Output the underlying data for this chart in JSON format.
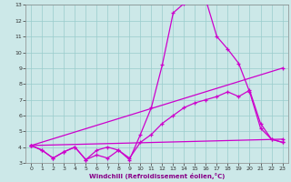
{
  "title": "",
  "xlabel": "Windchill (Refroidissement éolien,°C)",
  "bg_color": "#cce8e8",
  "line_color": "#cc00cc",
  "grid_color": "#99cccc",
  "xlim": [
    -0.5,
    23.5
  ],
  "ylim": [
    3,
    13
  ],
  "xticks": [
    0,
    1,
    2,
    3,
    4,
    5,
    6,
    7,
    8,
    9,
    10,
    11,
    12,
    13,
    14,
    15,
    16,
    17,
    18,
    19,
    20,
    21,
    22,
    23
  ],
  "yticks": [
    3,
    4,
    5,
    6,
    7,
    8,
    9,
    10,
    11,
    12,
    13
  ],
  "line1_x": [
    0,
    1,
    2,
    3,
    4,
    5,
    6,
    7,
    8,
    9,
    10,
    11,
    12,
    13,
    14,
    15,
    16,
    17,
    18,
    19,
    20,
    21,
    22,
    23
  ],
  "line1_y": [
    4.1,
    3.8,
    3.3,
    3.7,
    4.0,
    3.2,
    3.8,
    4.0,
    3.8,
    3.2,
    4.8,
    6.5,
    9.2,
    12.5,
    13.1,
    13.2,
    13.3,
    11.0,
    10.2,
    9.3,
    7.5,
    5.2,
    4.5,
    4.3
  ],
  "line2_x": [
    0,
    1,
    2,
    3,
    4,
    5,
    6,
    7,
    8,
    9,
    10,
    11,
    12,
    13,
    14,
    15,
    16,
    17,
    18,
    19,
    20,
    21,
    22,
    23
  ],
  "line2_y": [
    4.1,
    3.8,
    3.3,
    3.7,
    4.0,
    3.2,
    3.5,
    3.3,
    3.8,
    3.3,
    4.3,
    4.8,
    5.5,
    6.0,
    6.5,
    6.8,
    7.0,
    7.2,
    7.5,
    7.2,
    7.6,
    5.5,
    4.5,
    4.3
  ],
  "line3_x": [
    0,
    23
  ],
  "line3_y": [
    4.1,
    9.0
  ],
  "line4_x": [
    0,
    23
  ],
  "line4_y": [
    4.1,
    4.5
  ]
}
